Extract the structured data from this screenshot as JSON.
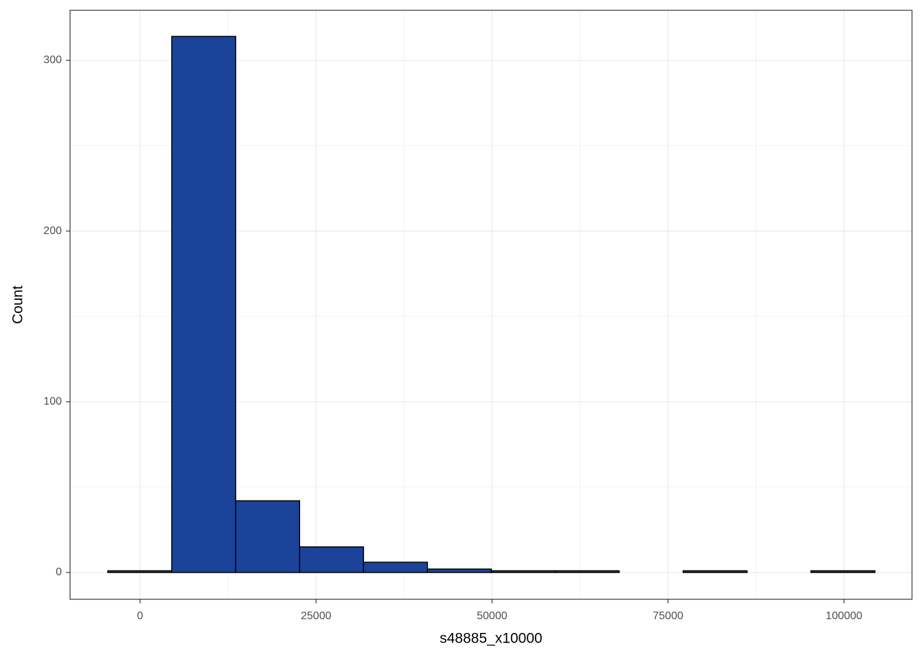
{
  "chart_data": {
    "type": "histogram",
    "x_label": "s48885_x10000",
    "y_label": "Count",
    "bins": [
      -4585,
      4496,
      13577,
      22658,
      31739,
      40820,
      49901,
      58982,
      68063,
      77144,
      86225,
      95306,
      104387
    ],
    "counts": [
      1,
      314,
      42,
      15,
      6,
      2,
      1,
      1,
      0,
      1,
      0,
      1
    ],
    "color": "#1a4399",
    "xlim": [
      -9951,
      109658
    ],
    "ylim": [
      -15.7,
      329.3
    ],
    "xticks": [
      0,
      25000,
      50000,
      75000,
      100000
    ],
    "yticks": [
      0,
      100,
      200,
      300
    ],
    "grid": true
  }
}
